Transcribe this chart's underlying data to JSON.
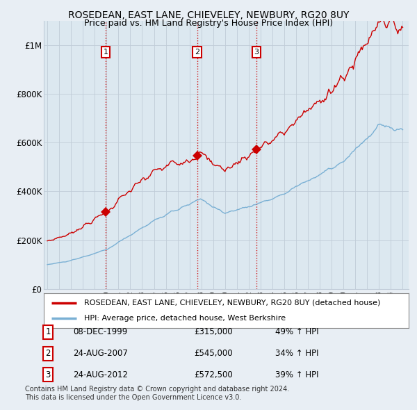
{
  "title": "ROSEDEAN, EAST LANE, CHIEVELEY, NEWBURY, RG20 8UY",
  "subtitle": "Price paid vs. HM Land Registry's House Price Index (HPI)",
  "legend_line1": "ROSEDEAN, EAST LANE, CHIEVELEY, NEWBURY, RG20 8UY (detached house)",
  "legend_line2": "HPI: Average price, detached house, West Berkshire",
  "footer1": "Contains HM Land Registry data © Crown copyright and database right 2024.",
  "footer2": "This data is licensed under the Open Government Licence v3.0.",
  "sale_labels": [
    {
      "num": "1",
      "date": "08-DEC-1999",
      "price": "£315,000",
      "pct": "49% ↑ HPI"
    },
    {
      "num": "2",
      "date": "24-AUG-2007",
      "price": "£545,000",
      "pct": "34% ↑ HPI"
    },
    {
      "num": "3",
      "date": "24-AUG-2012",
      "price": "£572,500",
      "pct": "39% ↑ HPI"
    }
  ],
  "sale_years": [
    1999.92,
    2007.64,
    2012.64
  ],
  "sale_prices": [
    315000,
    545000,
    572500
  ],
  "ylim": [
    0,
    1100000
  ],
  "yticks": [
    0,
    200000,
    400000,
    600000,
    800000,
    1000000
  ],
  "ytick_labels": [
    "£0",
    "£200K",
    "£400K",
    "£600K",
    "£800K",
    "£1M"
  ],
  "red_color": "#cc0000",
  "blue_color": "#7ab0d4",
  "bg_color": "#e8eef4",
  "plot_bg": "#dce8f0",
  "grid_color": "#c0ccd8"
}
